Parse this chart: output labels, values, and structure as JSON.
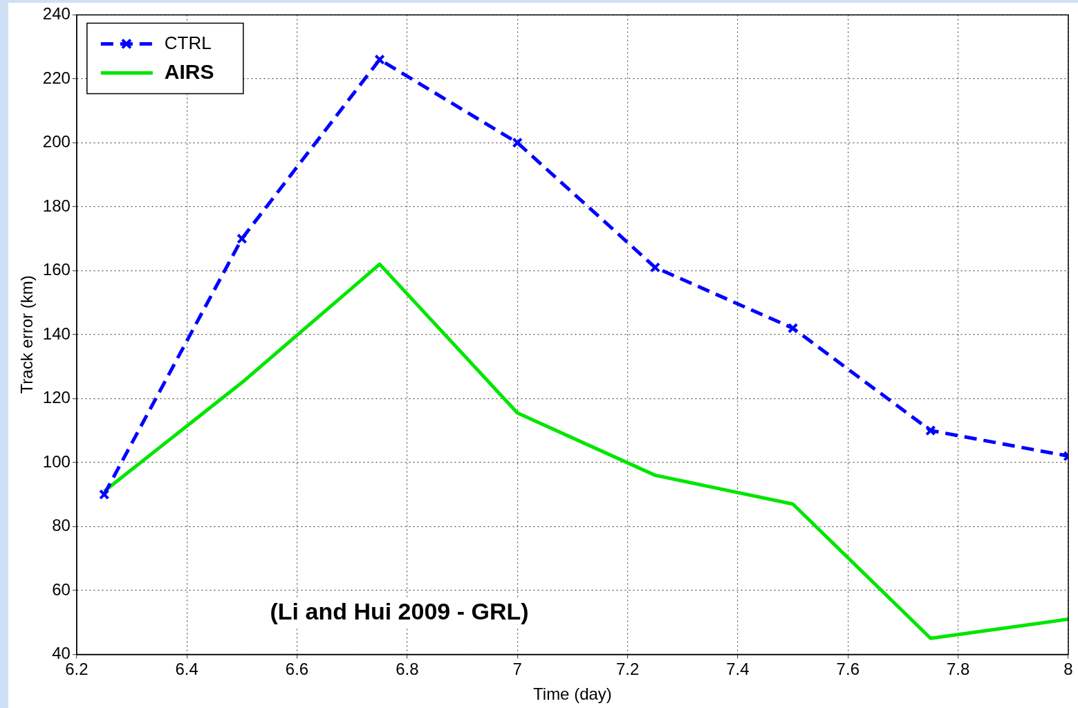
{
  "chart_data": {
    "type": "line",
    "xlabel": "Time (day)",
    "ylabel": "Track error (km)",
    "x": [
      6.25,
      6.5,
      6.75,
      7,
      7.25,
      7.5,
      7.75,
      8
    ],
    "series": [
      {
        "name": "CTRL",
        "color": "#0000ff",
        "values": [
          90,
          170,
          226,
          200,
          161,
          142,
          110,
          102
        ],
        "marker": "cross",
        "line_style": "dashed"
      },
      {
        "name": "AIRS",
        "color": "#00e600",
        "values": [
          91,
          125,
          162,
          115.5,
          96,
          87,
          45,
          51
        ],
        "marker": "none",
        "line_style": "solid"
      }
    ],
    "xlim": [
      6.2,
      8
    ],
    "xticks": [
      6.2,
      6.4,
      6.6,
      6.8,
      7,
      7.2,
      7.4,
      7.6,
      7.8,
      8
    ],
    "ylim": [
      40,
      240
    ],
    "yticks": [
      40,
      60,
      80,
      100,
      120,
      140,
      160,
      180,
      200,
      220,
      240
    ],
    "grid": true,
    "legend": "top left",
    "annotations": [
      "(Li and Hui 2009 - GRL)"
    ]
  }
}
